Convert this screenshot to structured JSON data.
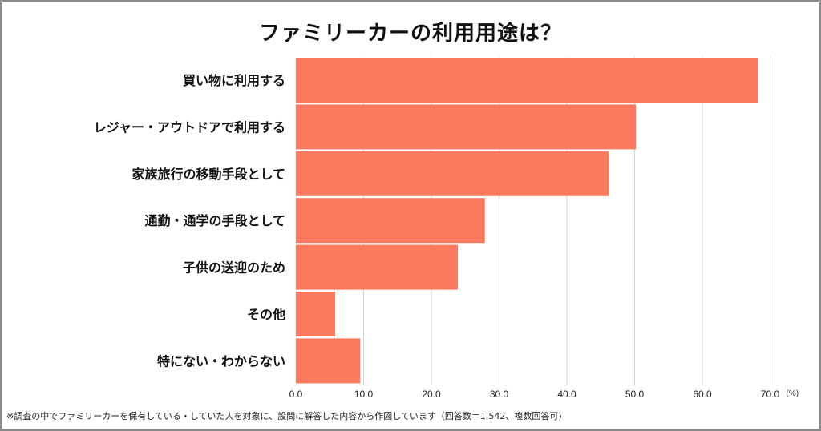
{
  "chart_data": {
    "type": "bar",
    "orientation": "horizontal",
    "title": "ファミリーカーの利用用途は？",
    "categories": [
      "買い物に利用する",
      "レジャー・アウトドアで利用する",
      "家族旅行の移動手段として",
      "通勤・通学の手段として",
      "子供の送迎のため",
      "その他",
      "特にない・わからない"
    ],
    "values": [
      68.2,
      50.2,
      46.2,
      27.9,
      23.9,
      5.8,
      9.5
    ],
    "xticks": [
      "0.0",
      "10.0",
      "20.0",
      "30.0",
      "40.0",
      "50.0",
      "60.0",
      "70.0"
    ],
    "xlim": [
      0,
      70
    ],
    "unit": "(%)",
    "grid": true,
    "bar_color": "#fa7a5f"
  },
  "footnote": "※調査の中でファミリーカーを保有している・していた人を対象に、設問に解答した内容から作図しています（回答数＝1,542、複数回答可)"
}
